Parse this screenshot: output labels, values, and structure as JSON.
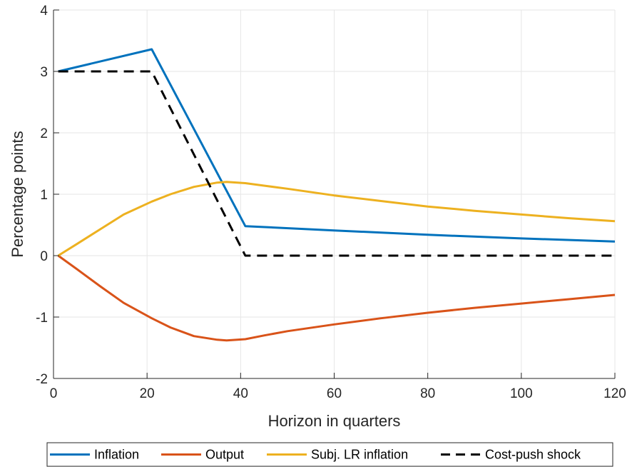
{
  "chart_data": {
    "type": "line",
    "xlabel": "Horizon in quarters",
    "ylabel": "Percentage points",
    "xlim": [
      0,
      120
    ],
    "ylim": [
      -2,
      4
    ],
    "xticks": [
      0,
      20,
      40,
      60,
      80,
      100,
      120
    ],
    "yticks": [
      -2,
      -1,
      0,
      1,
      2,
      3,
      4
    ],
    "grid": true,
    "legend_position": "bottom-outside",
    "series": [
      {
        "name": "Inflation",
        "color": "#0072BD",
        "dash": "solid",
        "x": [
          1,
          21,
          41,
          60,
          80,
          100,
          120
        ],
        "y": [
          3.0,
          3.36,
          0.48,
          0.41,
          0.34,
          0.28,
          0.23
        ]
      },
      {
        "name": "Output",
        "color": "#D95319",
        "dash": "solid",
        "x": [
          1,
          5,
          10,
          15,
          21,
          25,
          30,
          35,
          37,
          41,
          45,
          50,
          60,
          70,
          80,
          90,
          100,
          110,
          120
        ],
        "y": [
          0.0,
          -0.22,
          -0.5,
          -0.77,
          -1.02,
          -1.17,
          -1.31,
          -1.37,
          -1.38,
          -1.36,
          -1.3,
          -1.23,
          -1.12,
          -1.02,
          -0.93,
          -0.85,
          -0.78,
          -0.71,
          -0.64
        ]
      },
      {
        "name": "Subj. LR inflation",
        "color": "#EDB120",
        "dash": "solid",
        "x": [
          1,
          5,
          10,
          15,
          21,
          25,
          30,
          35,
          37,
          41,
          45,
          50,
          60,
          70,
          80,
          90,
          100,
          110,
          120
        ],
        "y": [
          0.0,
          0.19,
          0.43,
          0.67,
          0.88,
          1.0,
          1.12,
          1.19,
          1.2,
          1.18,
          1.14,
          1.09,
          0.98,
          0.89,
          0.8,
          0.73,
          0.67,
          0.61,
          0.56
        ]
      },
      {
        "name": "Cost-push shock",
        "color": "#000000",
        "dash": "dashed",
        "x": [
          1,
          21,
          41,
          120
        ],
        "y": [
          3.0,
          3.0,
          0.0,
          0.0
        ]
      }
    ]
  }
}
